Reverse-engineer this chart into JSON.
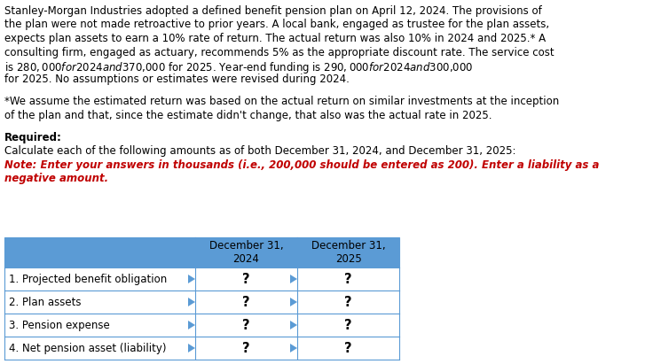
{
  "body_lines": [
    "Stanley-Morgan Industries adopted a defined benefit pension plan on April 12, 2024. The provisions of",
    "the plan were not made retroactive to prior years. A local bank, engaged as trustee for the plan assets,",
    "expects plan assets to earn a 10% rate of return. The actual return was also 10% in 2024 and 2025.* A",
    "consulting firm, engaged as actuary, recommends 5% as the appropriate discount rate. The service cost",
    "is $280,000 for 2024 and $370,000 for 2025. Year-end funding is $290,000 for 2024 and $300,000",
    "for 2025. No assumptions or estimates were revised during 2024."
  ],
  "footnote_lines": [
    "*We assume the estimated return was based on the actual return on similar investments at the inception",
    "of the plan and that, since the estimate didn't change, that also was the actual rate in 2025."
  ],
  "required_label": "Required:",
  "required_body": "Calculate each of the following amounts as of both December 31, 2024, and December 31, 2025:",
  "note_line1": "Note: Enter your answers in thousands (i.e., 200,000 should be entered as 200). Enter a liability as a",
  "note_line2": "negative amount.",
  "col_headers": [
    "December 31,\n2024",
    "December 31,\n2025"
  ],
  "row_labels": [
    "1. Projected benefit obligation",
    "2. Plan assets",
    "3. Pension expense",
    "4. Net pension asset (liability)"
  ],
  "cell_value": "?",
  "header_bg": "#5b9bd5",
  "header_text_color": "#000000",
  "border_color": "#5b9bd5",
  "cell_bg": "#ffffff",
  "note_color": "#c00000",
  "background_color": "#ffffff",
  "fig_width": 7.27,
  "fig_height": 4.11,
  "body_fontsize": 8.5,
  "table_fontsize": 8.5
}
